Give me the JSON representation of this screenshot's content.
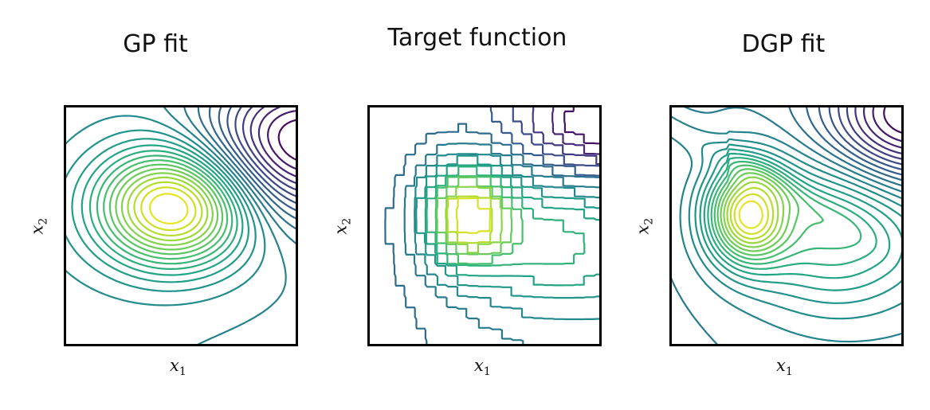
{
  "chart_data": [
    {
      "type": "contour",
      "title": "GP fit",
      "xlabel": "x",
      "xlabel_sub": "1",
      "ylabel": "x",
      "ylabel_sub": "2",
      "colormap": "viridis",
      "grid": false,
      "levels": 26
    },
    {
      "type": "contour",
      "title": "Target function",
      "xlabel": "x",
      "xlabel_sub": "1",
      "ylabel": "x",
      "ylabel_sub": "2",
      "colormap": "viridis",
      "grid": false,
      "levels": 16
    },
    {
      "type": "contour",
      "title": "DGP fit",
      "xlabel": "x",
      "xlabel_sub": "1",
      "ylabel": "x",
      "ylabel_sub": "2",
      "colormap": "viridis",
      "grid": false,
      "levels": 26
    }
  ]
}
